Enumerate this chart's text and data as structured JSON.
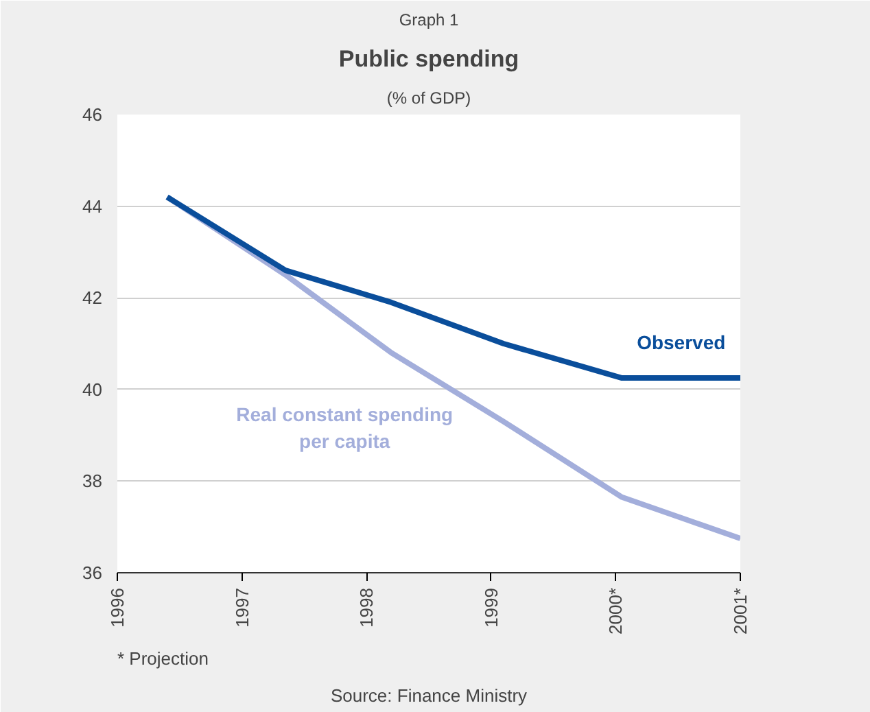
{
  "chart_data": {
    "type": "line",
    "title": "Public spending",
    "subtitle": "(% of GDP)",
    "annotations": [
      "Graph 1",
      "* Projection",
      "Source: Finance Ministry"
    ],
    "xlim": [
      1996,
      2001
    ],
    "xticks": [
      1996,
      1997,
      1998,
      1999,
      {
        "value": 2000,
        "label": "2000*"
      },
      {
        "value": 2001,
        "label": "2001*"
      }
    ],
    "ylim": [
      36,
      46
    ],
    "yticks": [
      36,
      38,
      40,
      42,
      44,
      46
    ],
    "grid": "y",
    "marker": "none",
    "line_style": "solid",
    "series": [
      {
        "name": "Observed",
        "color": "#0a4e9b",
        "x": [
          1996.4,
          1997.35,
          1998.2,
          1999.1,
          2000.05,
          2001
        ],
        "values": [
          44.2,
          42.6,
          41.9,
          41.0,
          40.25,
          40.25
        ]
      },
      {
        "name": "Real constant spending per capita",
        "color": "#a3aedb",
        "x": [
          1996.4,
          1997.35,
          1998.2,
          1999.1,
          2000.05,
          2001
        ],
        "values": [
          44.2,
          42.5,
          40.8,
          39.3,
          37.65,
          36.75
        ]
      }
    ]
  }
}
